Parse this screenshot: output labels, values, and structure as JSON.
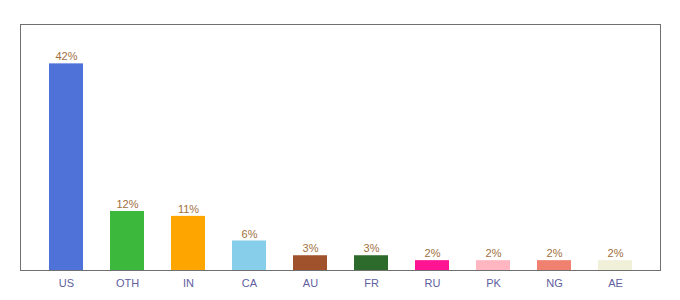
{
  "chart_data": {
    "type": "bar",
    "categories": [
      "US",
      "OTH",
      "IN",
      "CA",
      "AU",
      "FR",
      "RU",
      "PK",
      "NG",
      "AE"
    ],
    "values": [
      42,
      12,
      11,
      6,
      3,
      3,
      2,
      2,
      2,
      2
    ],
    "value_labels": [
      "42%",
      "12%",
      "11%",
      "6%",
      "3%",
      "3%",
      "2%",
      "2%",
      "2%",
      "2%"
    ],
    "colors": [
      "#4e72d8",
      "#3cb83c",
      "#ffa500",
      "#87ceeb",
      "#a0522d",
      "#2d6b2d",
      "#ff1493",
      "#ffb6c1",
      "#f08070",
      "#f0f0d8"
    ],
    "ylim": [
      0,
      50
    ],
    "data_labels": true,
    "tick_labels": "x"
  }
}
